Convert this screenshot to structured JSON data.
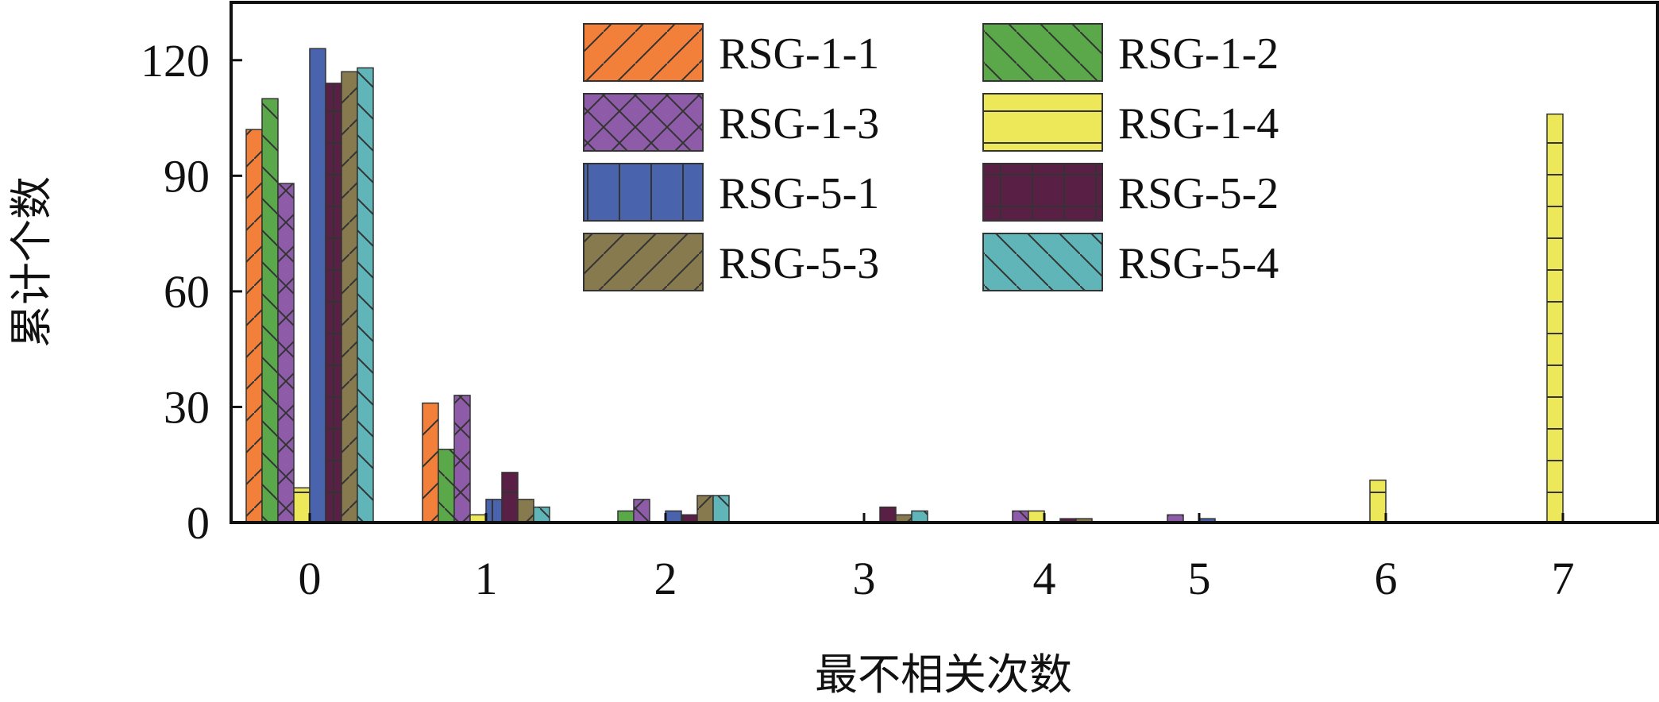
{
  "chart_data": {
    "type": "bar",
    "title": "",
    "xlabel": "最不相关次数",
    "ylabel": "累计个数",
    "categories": [
      "0",
      "1",
      "2",
      "3",
      "4",
      "5",
      "6",
      "7"
    ],
    "ylim": [
      0,
      135
    ],
    "yticks": [
      0,
      30,
      60,
      90,
      120
    ],
    "grid": false,
    "legend": "top-center",
    "series": [
      {
        "name": "RSG-1-1",
        "color": "#f2803a",
        "pattern": "diag-fwd",
        "values": [
          102,
          31,
          0,
          0,
          0,
          0,
          0,
          0
        ]
      },
      {
        "name": "RSG-1-2",
        "color": "#5aa84a",
        "pattern": "diag-back",
        "values": [
          110,
          19,
          3,
          0,
          0,
          0,
          0,
          0
        ]
      },
      {
        "name": "RSG-1-3",
        "color": "#8e5ba8",
        "pattern": "cross",
        "values": [
          88,
          33,
          6,
          0,
          3,
          2,
          0,
          0
        ]
      },
      {
        "name": "RSG-1-4",
        "color": "#ede85a",
        "pattern": "horizontal",
        "values": [
          9,
          2,
          0,
          0,
          3,
          0,
          11,
          106
        ]
      },
      {
        "name": "RSG-5-1",
        "color": "#4a63ad",
        "pattern": "vertical",
        "values": [
          123,
          6,
          3,
          0,
          0,
          1,
          0,
          0
        ]
      },
      {
        "name": "RSG-5-2",
        "color": "#5a1f45",
        "pattern": "grid",
        "values": [
          114,
          13,
          2,
          4,
          1,
          0,
          0,
          0
        ]
      },
      {
        "name": "RSG-5-3",
        "color": "#867a4e",
        "pattern": "diag-fwd",
        "values": [
          117,
          6,
          7,
          2,
          1,
          0,
          0,
          0
        ]
      },
      {
        "name": "RSG-5-4",
        "color": "#5fb5b8",
        "pattern": "diag-back",
        "values": [
          118,
          4,
          7,
          3,
          0,
          0,
          0,
          0
        ]
      }
    ]
  }
}
